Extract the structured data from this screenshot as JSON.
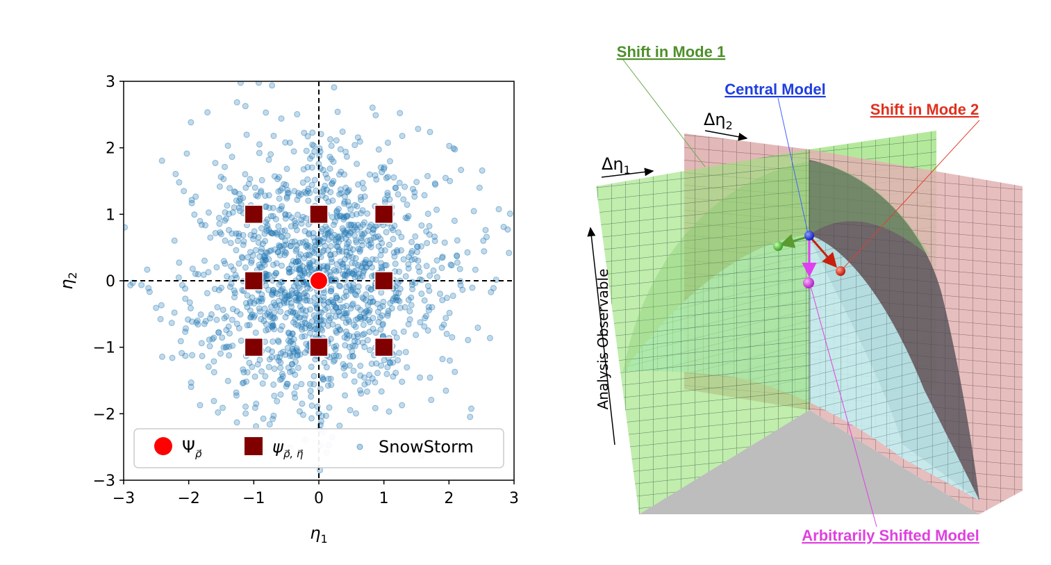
{
  "chart_data": [
    {
      "type": "scatter",
      "title": "",
      "xlabel": "η1",
      "ylabel": "η2",
      "xlim": [
        -3,
        3
      ],
      "ylim": [
        -3,
        3
      ],
      "xticks": [
        "−3",
        "−2",
        "−1",
        "0",
        "1",
        "2",
        "3"
      ],
      "yticks": [
        "−3",
        "−2",
        "−1",
        "0",
        "1",
        "2",
        "3"
      ],
      "grid": false,
      "reference_lines": {
        "x": 0,
        "y": 0,
        "style": "dashed"
      },
      "legend_position": "bottom",
      "series": [
        {
          "name": "Ψρ",
          "marker": "circle",
          "color": "#ff0000",
          "points": [
            [
              0,
              0
            ]
          ]
        },
        {
          "name": "ψρ,η",
          "marker": "square",
          "color": "#800000",
          "points": [
            [
              -1,
              1
            ],
            [
              0,
              1
            ],
            [
              1,
              1
            ],
            [
              -1,
              0
            ],
            [
              1,
              0
            ],
            [
              -1,
              -1
            ],
            [
              0,
              -1
            ],
            [
              1,
              -1
            ]
          ]
        },
        {
          "name": "SnowStorm",
          "marker": "circle",
          "color": "#1f77b4",
          "distribution": "bivariate standard normal, approx. 1500 samples",
          "count": 1500
        }
      ]
    }
  ],
  "legend": {
    "central": "Ψ",
    "central_sub": "ρ⃗",
    "shifted": "ψ",
    "shifted_sub": "ρ⃗, η⃗",
    "snowstorm": "SnowStorm"
  },
  "axis_labels": {
    "x_main": "η",
    "x_sub": "1",
    "y_main": "η",
    "y_sub": "2"
  },
  "diagram": {
    "delta_eta1_main": "Δη",
    "delta_eta1_sub": "1",
    "delta_eta2_main": "Δη",
    "delta_eta2_sub": "2",
    "vertical_axis": "Analysis Observable",
    "callouts": {
      "mode1": "Shift in Mode 1",
      "central": "Central Model",
      "mode2": "Shift in Mode 2",
      "arbitrary": "Arbitrarily Shifted Model"
    },
    "colors": {
      "mode1": "#4e8f2a",
      "central": "#1f3fe0",
      "mode2": "#e0301e",
      "arbitrary": "#e040e0",
      "green_plane": "#9be27b",
      "pink_plane": "#d9a0a0",
      "surface": "#c2f1f4"
    }
  }
}
